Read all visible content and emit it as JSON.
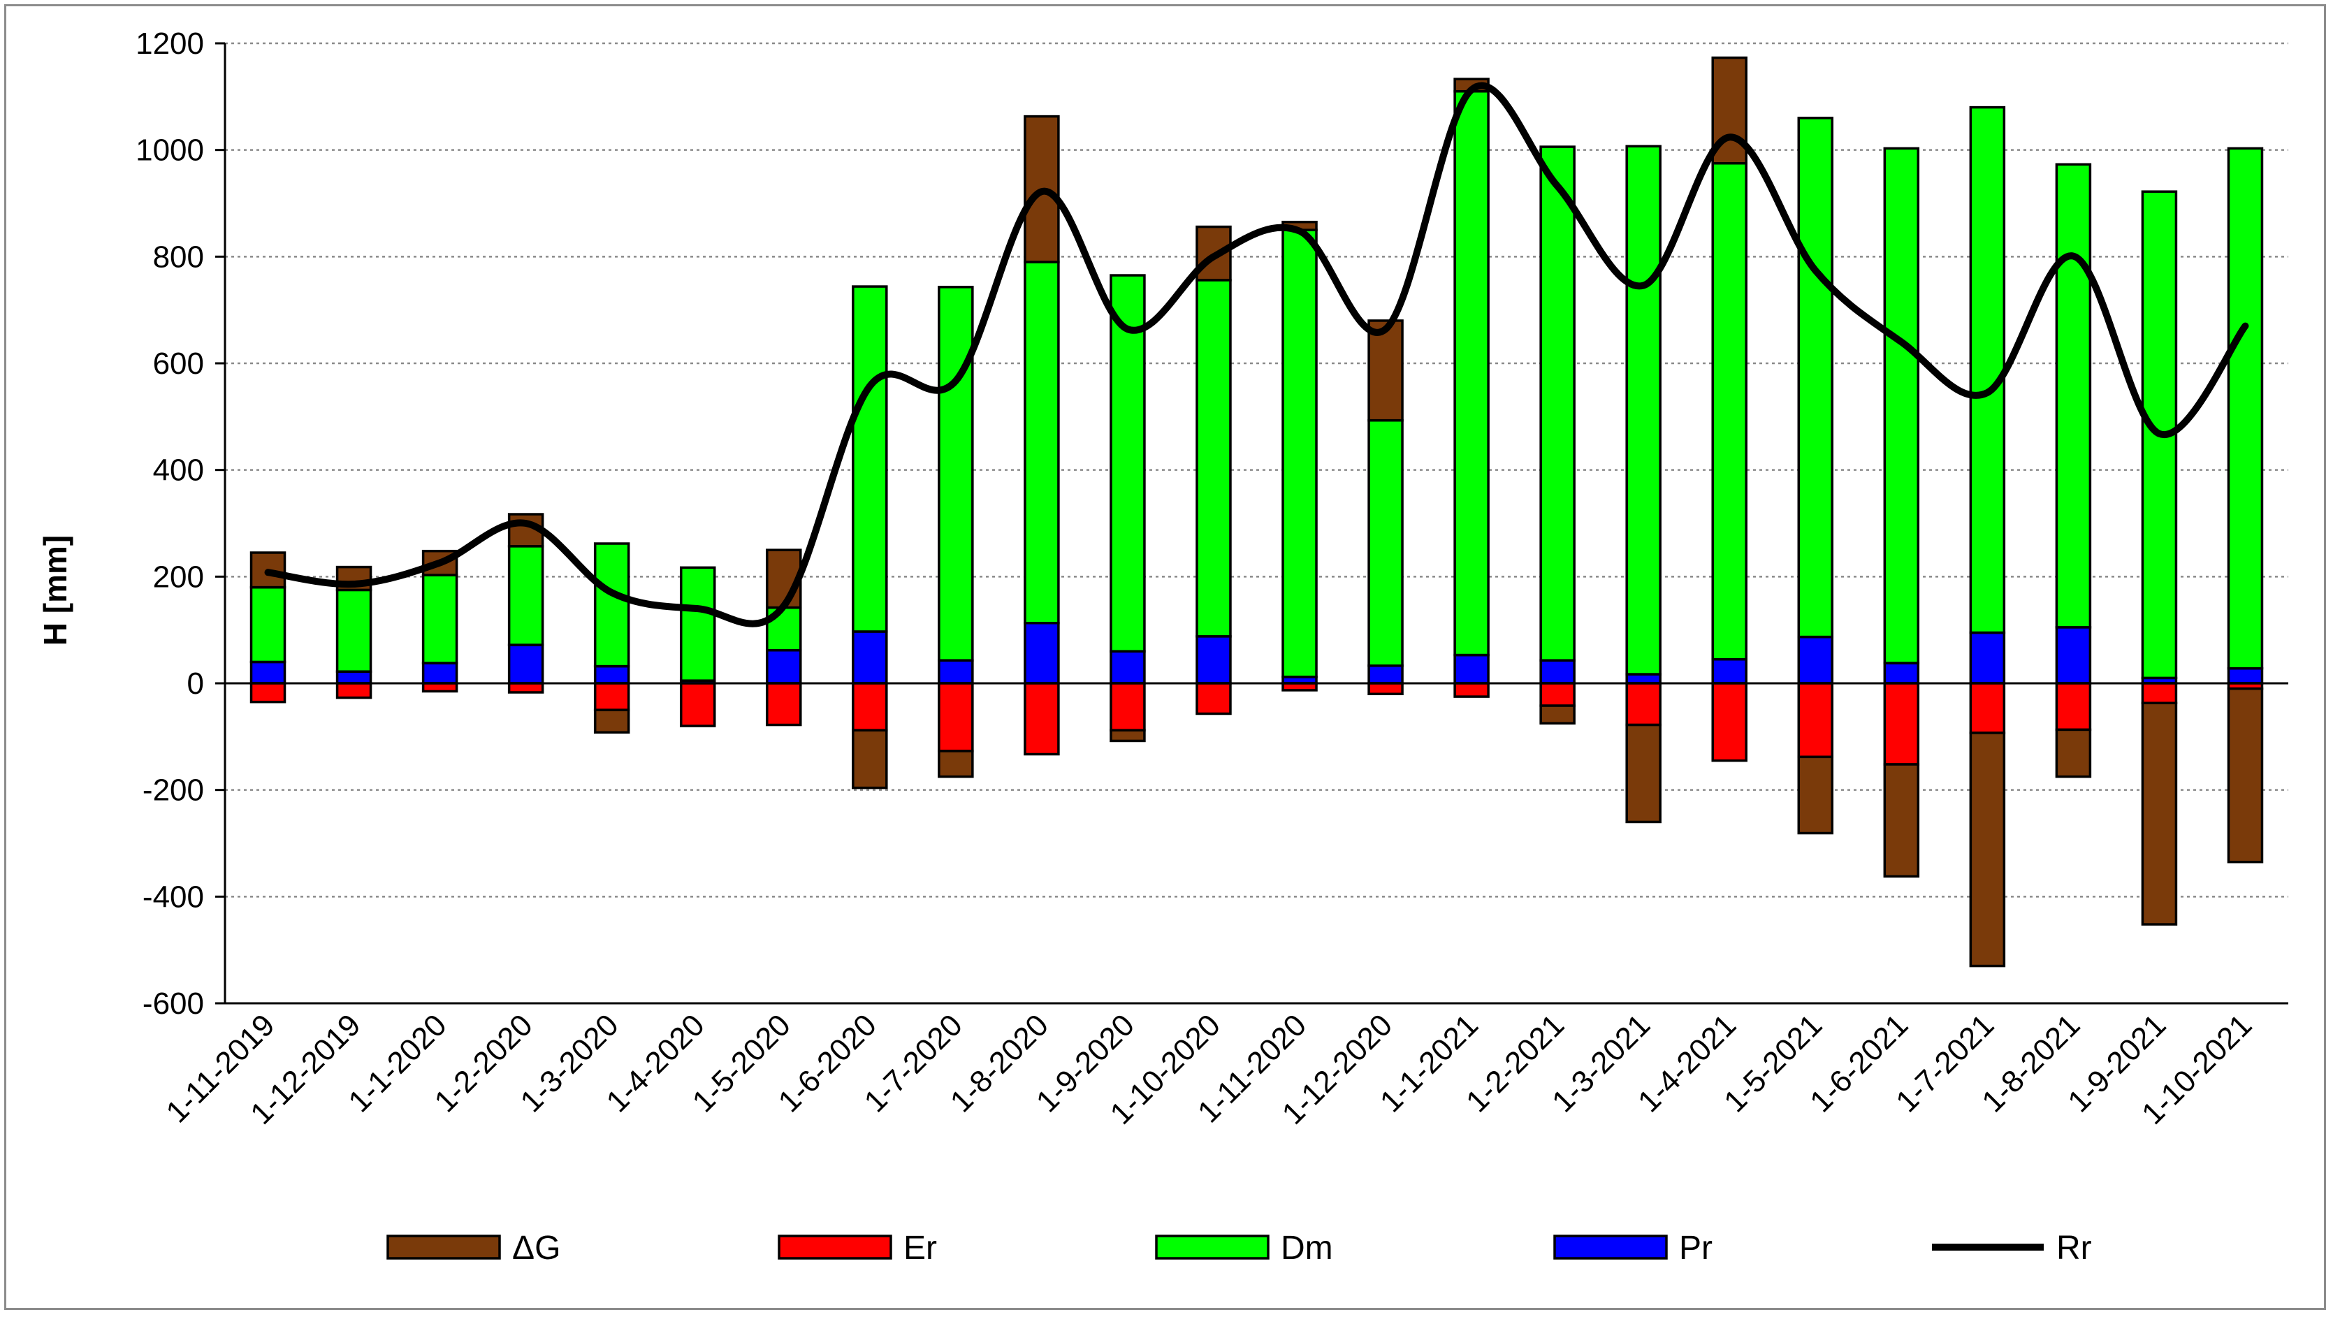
{
  "chart_data": {
    "type": "bar",
    "stacked": true,
    "title": "",
    "xlabel": "",
    "ylabel": "H [mm]",
    "ylim": [
      -600,
      1200
    ],
    "yticks": [
      1200,
      1000,
      800,
      600,
      400,
      200,
      0,
      -200,
      -400,
      -600
    ],
    "grid": true,
    "legend_position": "bottom",
    "categories": [
      "1-11-2019",
      "1-12-2019",
      "1-1-2020",
      "1-2-2020",
      "1-3-2020",
      "1-4-2020",
      "1-5-2020",
      "1-6-2020",
      "1-7-2020",
      "1-8-2020",
      "1-9-2020",
      "1-10-2020",
      "1-11-2020",
      "1-12-2020",
      "1-1-2021",
      "1-2-2021",
      "1-3-2021",
      "1-4-2021",
      "1-5-2021",
      "1-6-2021",
      "1-7-2021",
      "1-8-2021",
      "1-9-2021",
      "1-10-2021"
    ],
    "series": [
      {
        "name": "Pr",
        "type": "bar",
        "color": "#0000ff",
        "values": [
          40,
          22,
          38,
          72,
          32,
          5,
          62,
          97,
          43,
          113,
          60,
          88,
          12,
          33,
          53,
          43,
          17,
          45,
          87,
          38,
          95,
          105,
          10,
          28
        ]
      },
      {
        "name": "Dm",
        "type": "bar",
        "color": "#00ff00",
        "values": [
          140,
          153,
          165,
          185,
          230,
          212,
          80,
          647,
          700,
          677,
          705,
          668,
          838,
          460,
          1057,
          963,
          990,
          930,
          973,
          965,
          985,
          868,
          912,
          975
        ]
      },
      {
        "name": "Er",
        "type": "bar",
        "color": "#ff0000",
        "values": [
          -35,
          -27,
          -15,
          -17,
          -50,
          -80,
          -78,
          -88,
          -127,
          -133,
          -88,
          -57,
          -13,
          -20,
          -25,
          -42,
          -78,
          -145,
          -138,
          -152,
          -93,
          -87,
          -37,
          -10
        ]
      },
      {
        "name": "ΔG",
        "type": "bar",
        "color": "#7a3a0a",
        "values": [
          65,
          43,
          45,
          60,
          -42,
          0,
          108,
          -108,
          -48,
          273,
          -20,
          100,
          15,
          187,
          23,
          -33,
          -182,
          198,
          -143,
          -210,
          -437,
          -88,
          -415,
          -325
        ]
      },
      {
        "name": "Rr",
        "type": "line",
        "color": "#000000",
        "values": [
          208,
          186,
          226,
          300,
          170,
          140,
          145,
          557,
          567,
          922,
          664,
          800,
          848,
          664,
          1113,
          932,
          746,
          1024,
          774,
          640,
          545,
          801,
          468,
          670
        ]
      }
    ]
  },
  "legend": {
    "items": [
      {
        "label": "ΔG",
        "color": "#7a3a0a",
        "kind": "box"
      },
      {
        "label": "Er",
        "color": "#ff0000",
        "kind": "box"
      },
      {
        "label": "Dm",
        "color": "#00ff00",
        "kind": "box"
      },
      {
        "label": "Pr",
        "color": "#0000ff",
        "kind": "box"
      },
      {
        "label": "Rr",
        "color": "#000000",
        "kind": "line"
      }
    ]
  }
}
